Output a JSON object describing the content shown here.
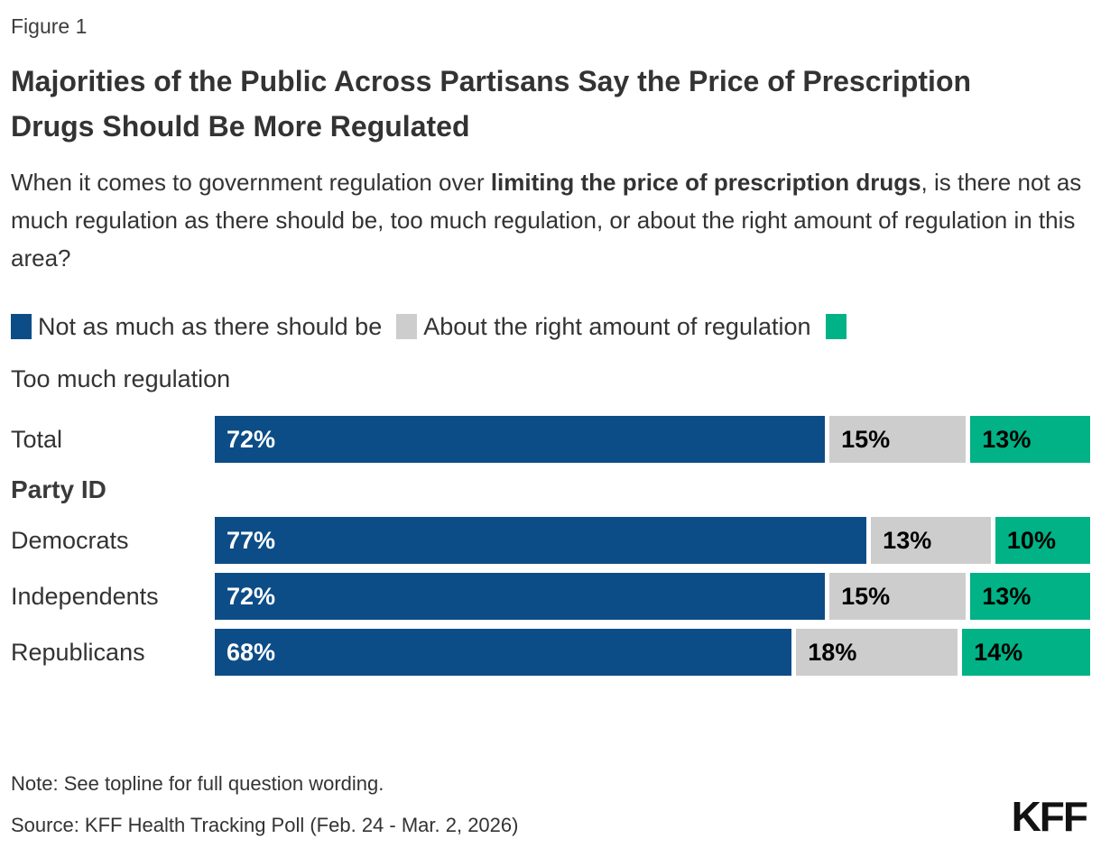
{
  "figure_label": "Figure 1",
  "title": "Majorities of the Public Across Partisans Say the Price of Prescription Drugs Should Be More Regulated",
  "question": {
    "pre": "When it comes to government regulation over ",
    "bold": "limiting the price of prescription drugs",
    "post": ", is there not as much regulation as there should be, too much regulation, or about the right amount of regulation in this area?"
  },
  "legend": [
    {
      "label": "Not as much as there should be",
      "color": "#0D4D87"
    },
    {
      "label": "About the right amount of regulation",
      "color": "#CDCDCD"
    },
    {
      "label": "Too much regulation",
      "color": "#00B285"
    }
  ],
  "chart_data": {
    "type": "bar",
    "orientation": "horizontal",
    "stacked": true,
    "categories": [
      "Total",
      "Democrats",
      "Independents",
      "Republicans"
    ],
    "group_label": "Party ID",
    "group_label_before_category": "Democrats",
    "series": [
      {
        "name": "Not as much as there should be",
        "color": "#0D4D87",
        "values": [
          72,
          77,
          72,
          68
        ]
      },
      {
        "name": "About the right amount of regulation",
        "color": "#CDCDCD",
        "values": [
          15,
          13,
          15,
          18
        ]
      },
      {
        "name": "Too much regulation",
        "color": "#00B285",
        "values": [
          13,
          10,
          13,
          14
        ]
      }
    ],
    "value_suffix": "%",
    "xlim": [
      0,
      100
    ],
    "grid": false,
    "legend_position": "top"
  },
  "note": "Note: See topline for full question wording.",
  "source": "Source: KFF Health Tracking Poll (Feb. 24 - Mar. 2, 2026)",
  "logo": "KFF"
}
